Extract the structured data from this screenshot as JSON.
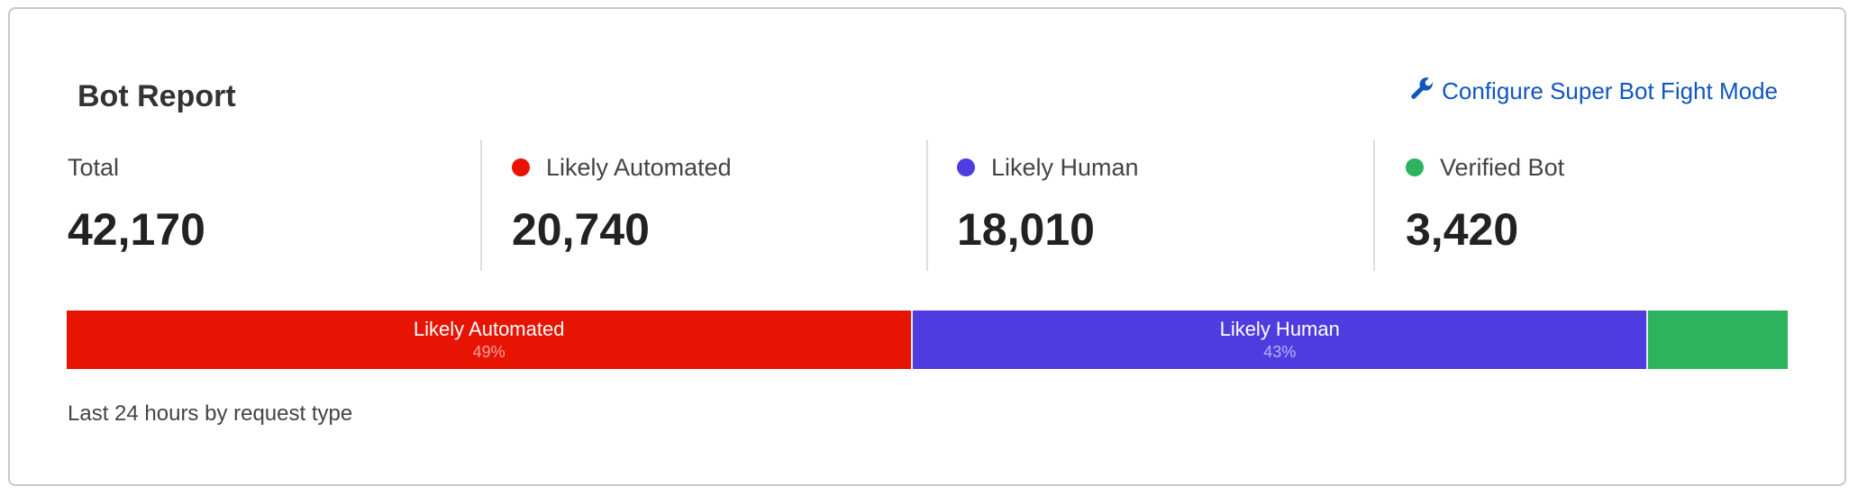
{
  "title": "Bot Report",
  "configure_link": {
    "label": "Configure Super Bot Fight Mode",
    "icon": "wrench-icon",
    "color": "#0f56c0"
  },
  "stats": [
    {
      "label": "Total",
      "value": "42,170"
    },
    {
      "label": "Likely Automated",
      "value": "20,740",
      "color": "#e81403"
    },
    {
      "label": "Likely Human",
      "value": "18,010",
      "color": "#4f3ce0"
    },
    {
      "label": "Verified Bot",
      "value": "3,420",
      "color": "#2db35d"
    }
  ],
  "bar": [
    {
      "label": "Likely Automated",
      "percent_label": "49%",
      "value": 20740,
      "color": "#e81403"
    },
    {
      "label": "Likely Human",
      "percent_label": "43%",
      "value": 18010,
      "color": "#4f3ce0"
    },
    {
      "label": "",
      "percent_label": "",
      "value": 3420,
      "color": "#2db35d"
    }
  ],
  "footer": "Last 24 hours by request type"
}
